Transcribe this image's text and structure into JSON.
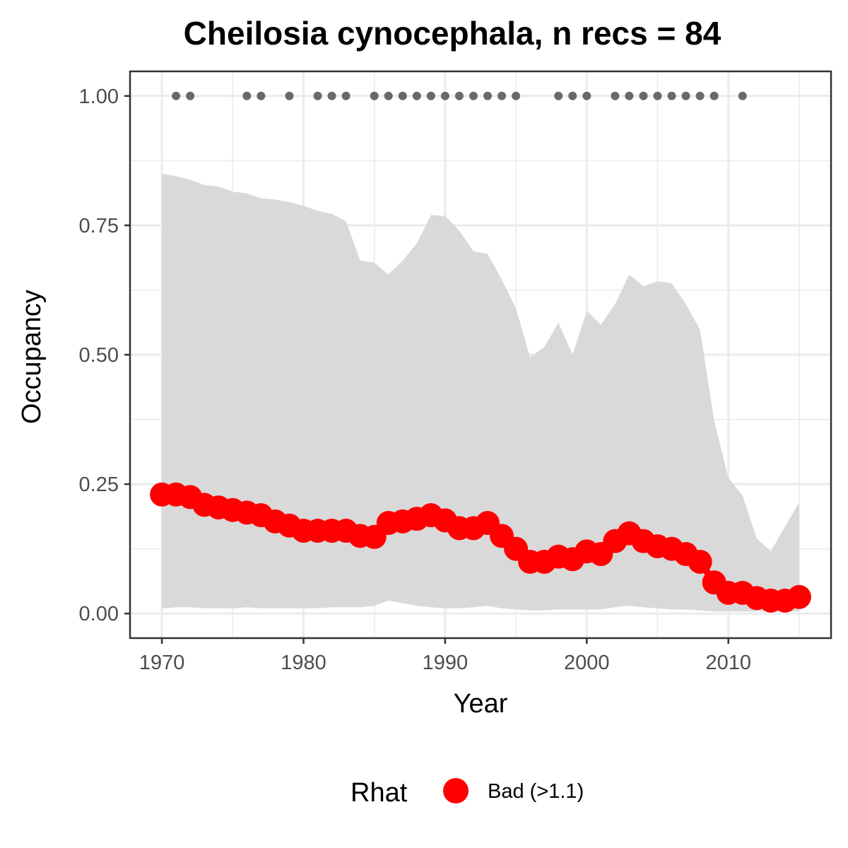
{
  "chart_data": {
    "type": "line",
    "title": "Cheilosia cynocephala, n recs = 84",
    "xlabel": "Year",
    "ylabel": "Occupancy",
    "xlim": [
      1967.8,
      1917.0
    ],
    "ylim": [
      -0.0475,
      1.0475
    ],
    "x_ticks": [
      1970,
      1980,
      1990,
      2000,
      2010
    ],
    "x_tick_labels": [
      "1970",
      "1980",
      "1990",
      "2000",
      "2010"
    ],
    "y_ticks": [
      0.0,
      0.25,
      0.5,
      0.75,
      1.0
    ],
    "y_tick_labels": [
      "0.00",
      "0.25",
      "0.50",
      "0.75",
      "1.00"
    ],
    "grid": true,
    "years": [
      1970,
      1971,
      1972,
      1973,
      1974,
      1975,
      1976,
      1977,
      1978,
      1979,
      1980,
      1981,
      1982,
      1983,
      1984,
      1985,
      1986,
      1987,
      1988,
      1989,
      1990,
      1991,
      1992,
      1993,
      1994,
      1995,
      1996,
      1997,
      1998,
      1999,
      2000,
      2001,
      2002,
      2003,
      2004,
      2005,
      2006,
      2007,
      2008,
      2009,
      2010,
      2011,
      2012,
      2013,
      2014,
      2015
    ],
    "series": [
      {
        "name": "Occupancy",
        "values": [
          0.23,
          0.23,
          0.225,
          0.21,
          0.205,
          0.2,
          0.195,
          0.19,
          0.178,
          0.17,
          0.16,
          0.16,
          0.16,
          0.16,
          0.15,
          0.148,
          0.175,
          0.178,
          0.183,
          0.19,
          0.18,
          0.165,
          0.165,
          0.175,
          0.15,
          0.125,
          0.1,
          0.1,
          0.11,
          0.105,
          0.12,
          0.115,
          0.14,
          0.155,
          0.14,
          0.13,
          0.125,
          0.115,
          0.1,
          0.06,
          0.04,
          0.04,
          0.03,
          0.025,
          0.025,
          0.032
        ]
      }
    ],
    "band": {
      "upper": [
        0.85,
        0.845,
        0.838,
        0.828,
        0.825,
        0.815,
        0.812,
        0.802,
        0.8,
        0.795,
        0.788,
        0.778,
        0.772,
        0.758,
        0.682,
        0.678,
        0.655,
        0.682,
        0.715,
        0.77,
        0.768,
        0.74,
        0.7,
        0.695,
        0.645,
        0.59,
        0.495,
        0.515,
        0.562,
        0.5,
        0.585,
        0.558,
        0.598,
        0.655,
        0.632,
        0.642,
        0.638,
        0.598,
        0.548,
        0.372,
        0.262,
        0.228,
        0.145,
        0.12,
        0.168,
        0.215
      ],
      "lower": [
        0.01,
        0.012,
        0.012,
        0.01,
        0.01,
        0.01,
        0.012,
        0.01,
        0.01,
        0.01,
        0.01,
        0.01,
        0.012,
        0.012,
        0.012,
        0.015,
        0.025,
        0.02,
        0.015,
        0.012,
        0.01,
        0.01,
        0.012,
        0.015,
        0.01,
        0.008,
        0.006,
        0.006,
        0.008,
        0.008,
        0.008,
        0.008,
        0.012,
        0.015,
        0.012,
        0.01,
        0.008,
        0.008,
        0.006,
        0.004,
        0.004,
        0.004,
        0.004,
        0.004,
        0.004,
        0.004
      ]
    },
    "record_years": [
      1971,
      1972,
      1976,
      1977,
      1979,
      1981,
      1982,
      1983,
      1985,
      1986,
      1987,
      1988,
      1989,
      1990,
      1991,
      1992,
      1993,
      1994,
      1995,
      1998,
      1999,
      2000,
      2002,
      2003,
      2004,
      2005,
      2006,
      2007,
      2008,
      2009,
      2011
    ],
    "record_value": 1.0,
    "legend": {
      "title": "Rhat",
      "items": [
        {
          "label": "Bad (>1.1)",
          "color": "#ff0000"
        }
      ],
      "placement": "bottom"
    },
    "colors": {
      "line": "#ff0000",
      "band": "#d9d9d9",
      "record": "#696969",
      "panel_border": "#333333",
      "grid_major": "#ebebeb",
      "tick_text": "#4d4d4d"
    }
  }
}
